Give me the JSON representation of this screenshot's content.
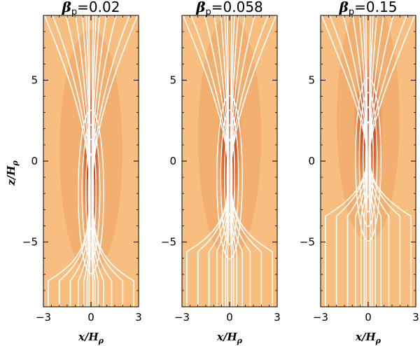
{
  "chart_data": {
    "type": "heatmap",
    "colors": {
      "background": "#f6b877",
      "contour": "#ffffff",
      "dark": "#cf4a17"
    },
    "panels": [
      {
        "title_symbol": "β",
        "title_subscript": "p",
        "title_value": "=0.02",
        "xlim": [
          -3.0,
          3.0
        ],
        "ylim": [
          -9.0,
          9.0
        ],
        "x_ticks": [
          -3,
          0,
          3
        ],
        "y_ticks": [
          -5,
          0,
          5
        ],
        "xlabel": "x/H",
        "xlabel_sub": "ρ",
        "contour_x": [
          -0.12,
          0.12,
          -0.25,
          0.25,
          -0.45,
          0.45,
          -0.8,
          0.8,
          -1.3,
          1.3,
          -2.0,
          2.0,
          -2.7,
          2.7
        ],
        "waist_z": -5.8
      },
      {
        "title_symbol": "β",
        "title_subscript": "p",
        "title_value": "=0.058",
        "xlim": [
          -3.0,
          3.0
        ],
        "ylim": [
          -9.0,
          9.0
        ],
        "x_ticks": [
          -3,
          0,
          3
        ],
        "y_ticks": [
          -5,
          0,
          5
        ],
        "xlabel": "x/H",
        "xlabel_sub": "ρ",
        "contour_x": [
          -0.12,
          0.12,
          -0.25,
          0.25,
          -0.45,
          0.45,
          -0.8,
          0.8,
          -1.3,
          1.3,
          -2.0,
          2.0,
          -2.7,
          2.7
        ],
        "waist_z": -4.0
      },
      {
        "title_symbol": "β",
        "title_subscript": "p",
        "title_value": "=0.15",
        "xlim": [
          -3.0,
          3.0
        ],
        "ylim": [
          -9.0,
          9.0
        ],
        "x_ticks": [
          -3,
          0,
          3
        ],
        "y_ticks": [
          -5,
          0,
          5
        ],
        "xlabel": "x/H",
        "xlabel_sub": "ρ",
        "contour_x": [
          -0.12,
          0.12,
          -0.25,
          0.25,
          -0.45,
          0.45,
          -0.8,
          0.8,
          -1.3,
          1.3,
          -2.0,
          2.0,
          -2.7,
          2.7
        ],
        "waist_z": -1.8
      }
    ],
    "ylabel": "z/H",
    "ylabel_sub": "ρ"
  }
}
